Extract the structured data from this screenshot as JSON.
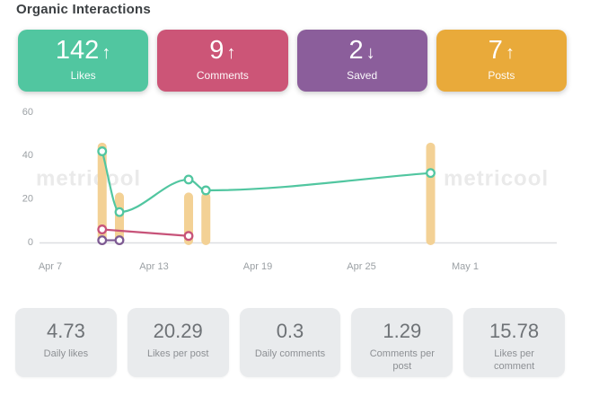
{
  "title": "Organic Interactions",
  "summary_cards": [
    {
      "id": "likes",
      "value": "142",
      "arrow": "↑",
      "trend": "up",
      "label": "Likes",
      "color": "#51c6a0"
    },
    {
      "id": "comments",
      "value": "9",
      "arrow": "↑",
      "trend": "up",
      "label": "Comments",
      "color": "#cc5577"
    },
    {
      "id": "saved",
      "value": "2",
      "arrow": "↓",
      "trend": "down",
      "label": "Saved",
      "color": "#8b5e9b"
    },
    {
      "id": "posts",
      "value": "7",
      "arrow": "↑",
      "trend": "up",
      "label": "Posts",
      "color": "#e9aa3a"
    }
  ],
  "chart_data": {
    "type": "line+bar",
    "title": "Organic Interactions",
    "ylim": [
      0,
      60
    ],
    "y_ticks": [
      0,
      20,
      40,
      60
    ],
    "x_ticks": [
      {
        "label": "Apr 7",
        "day": 0
      },
      {
        "label": "Apr 13",
        "day": 6
      },
      {
        "label": "Apr 19",
        "day": 12
      },
      {
        "label": "Apr 25",
        "day": 18
      },
      {
        "label": "May 1",
        "day": 24
      }
    ],
    "grid": "off",
    "legend": "none",
    "watermark": "metricool",
    "series": [
      {
        "name": "Likes",
        "type": "line",
        "color": "#51c6a0",
        "points": [
          {
            "date": "Apr 10",
            "day": 3,
            "value": 42
          },
          {
            "date": "Apr 11",
            "day": 4,
            "value": 14
          },
          {
            "date": "Apr 15",
            "day": 8,
            "value": 29
          },
          {
            "date": "Apr 16",
            "day": 9,
            "value": 24
          },
          {
            "date": "Apr 29",
            "day": 22,
            "value": 32
          }
        ]
      },
      {
        "name": "Comments",
        "type": "line",
        "color": "#c75379",
        "points": [
          {
            "date": "Apr 10",
            "day": 3,
            "value": 6
          },
          {
            "date": "Apr 15",
            "day": 8,
            "value": 3
          }
        ]
      },
      {
        "name": "Saved",
        "type": "line",
        "color": "#7d5a93",
        "points": [
          {
            "date": "Apr 10",
            "day": 3,
            "value": 1
          },
          {
            "date": "Apr 11",
            "day": 4,
            "value": 1
          }
        ]
      },
      {
        "name": "Posts",
        "type": "bar",
        "color": "#f3d195",
        "points": [
          {
            "date": "Apr 10",
            "day": 3,
            "value": 2
          },
          {
            "date": "Apr 11",
            "day": 4,
            "value": 1
          },
          {
            "date": "Apr 15",
            "day": 8,
            "value": 1
          },
          {
            "date": "Apr 16",
            "day": 9,
            "value": 1
          },
          {
            "date": "Apr 29",
            "day": 22,
            "value": 2
          }
        ]
      }
    ]
  },
  "metric_cards": [
    {
      "value": "4.73",
      "label": "Daily likes"
    },
    {
      "value": "20.29",
      "label": "Likes per post"
    },
    {
      "value": "0.3",
      "label": "Daily comments"
    },
    {
      "value": "1.29",
      "label": "Comments per post"
    },
    {
      "value": "15.78",
      "label": "Likes per comment"
    }
  ]
}
